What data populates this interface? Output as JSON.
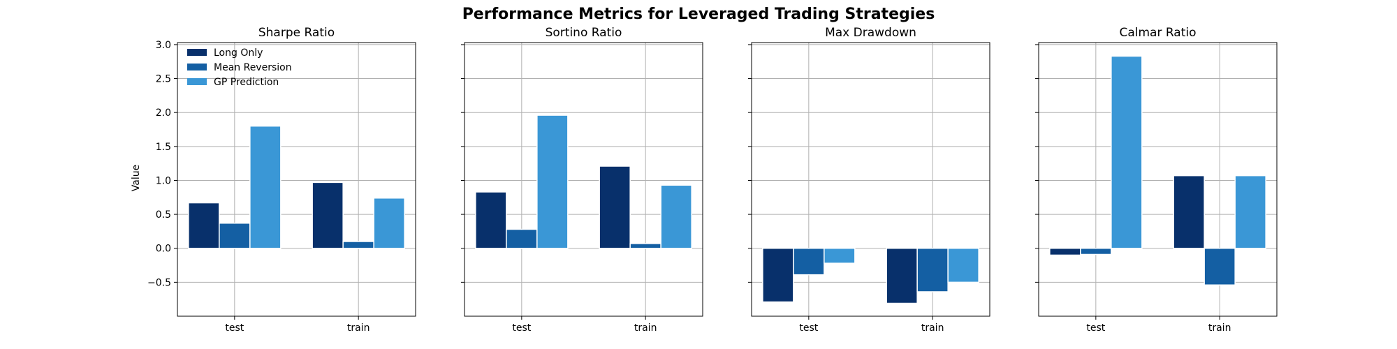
{
  "figure_title": "Performance Metrics for Leveraged Trading Strategies",
  "ylabel": "Value",
  "legend": {
    "placement": "top-left",
    "entries": [
      {
        "label": "Long Only",
        "color": "#08306b"
      },
      {
        "label": "Mean Reversion",
        "color": "#145fa3"
      },
      {
        "label": "GP Prediction",
        "color": "#3a97d6"
      }
    ]
  },
  "chart_data": [
    {
      "type": "bar",
      "title": "Sharpe Ratio",
      "categories": [
        "test",
        "train"
      ],
      "series": [
        {
          "name": "Long Only",
          "values": [
            0.67,
            0.97
          ]
        },
        {
          "name": "Mean Reversion",
          "values": [
            0.37,
            0.1
          ]
        },
        {
          "name": "GP Prediction",
          "values": [
            1.8,
            0.74
          ]
        }
      ],
      "ylim": [
        -1.0,
        3.03
      ],
      "yticks": [
        "3.0",
        "2.5",
        "2.0",
        "1.5",
        "1.0",
        "0.5",
        "0.0",
        "−0.5"
      ],
      "grid": true
    },
    {
      "type": "bar",
      "title": "Sortino Ratio",
      "categories": [
        "test",
        "train"
      ],
      "series": [
        {
          "name": "Long Only",
          "values": [
            0.83,
            1.21
          ]
        },
        {
          "name": "Mean Reversion",
          "values": [
            0.28,
            0.07
          ]
        },
        {
          "name": "GP Prediction",
          "values": [
            1.96,
            0.93
          ]
        }
      ],
      "ylim": [
        -1.0,
        3.03
      ],
      "grid": true
    },
    {
      "type": "bar",
      "title": "Max Drawdown",
      "categories": [
        "test",
        "train"
      ],
      "series": [
        {
          "name": "Long Only",
          "values": [
            -0.79,
            -0.81
          ]
        },
        {
          "name": "Mean Reversion",
          "values": [
            -0.39,
            -0.64
          ]
        },
        {
          "name": "GP Prediction",
          "values": [
            -0.22,
            -0.5
          ]
        }
      ],
      "ylim": [
        -1.0,
        3.03
      ],
      "grid": true
    },
    {
      "type": "bar",
      "title": "Calmar Ratio",
      "categories": [
        "test",
        "train"
      ],
      "series": [
        {
          "name": "Long Only",
          "values": [
            -0.1,
            1.07
          ]
        },
        {
          "name": "Mean Reversion",
          "values": [
            -0.09,
            -0.54
          ]
        },
        {
          "name": "GP Prediction",
          "values": [
            2.83,
            1.07
          ]
        }
      ],
      "ylim": [
        -1.0,
        3.03
      ],
      "grid": true
    }
  ]
}
